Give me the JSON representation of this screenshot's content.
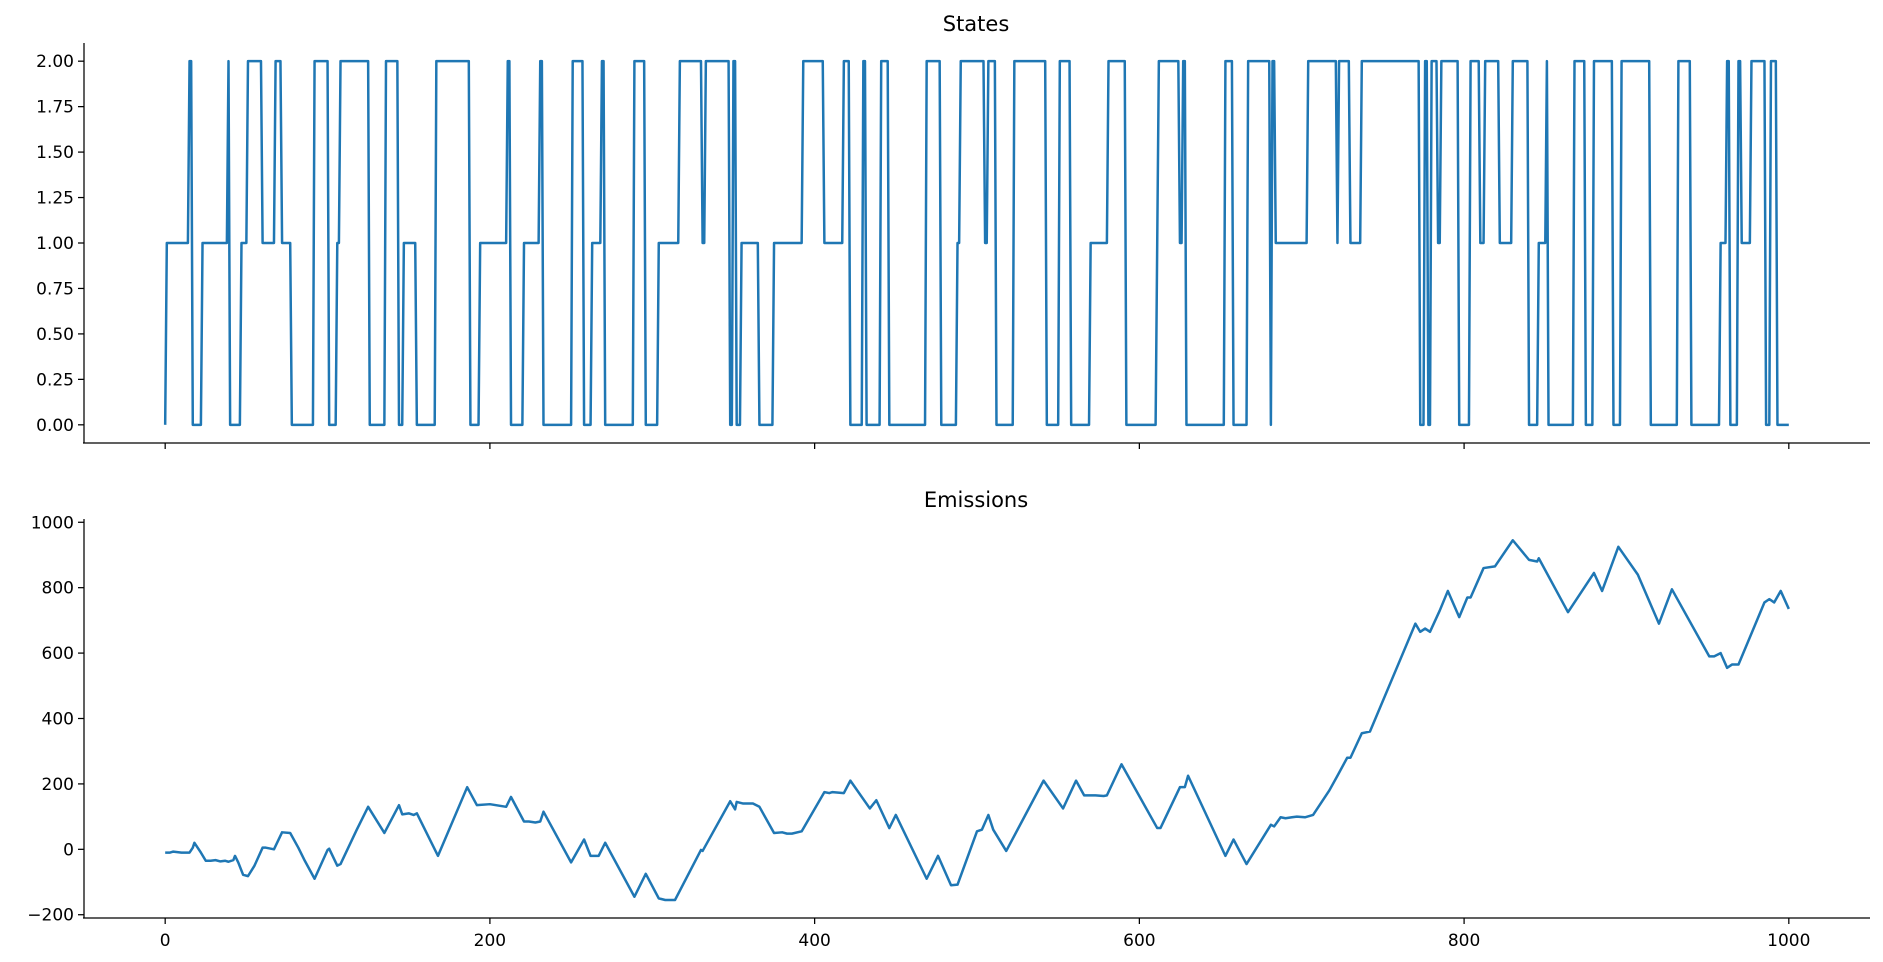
{
  "chart_data": [
    {
      "type": "line",
      "title": "States",
      "xlabel": "",
      "ylabel": "",
      "xlim": [
        -50,
        1050
      ],
      "ylim": [
        -0.1,
        2.1
      ],
      "xticks": [
        0,
        200,
        400,
        600,
        800,
        1000
      ],
      "xtick_labels_visible": false,
      "yticks": [
        0.0,
        0.25,
        0.5,
        0.75,
        1.0,
        1.25,
        1.5,
        1.75,
        2.0
      ],
      "ytick_labels": [
        "0.00",
        "0.25",
        "0.50",
        "0.75",
        "1.00",
        "1.25",
        "1.50",
        "1.75",
        "2.00"
      ],
      "grid": false,
      "color": "#1f77b4",
      "step_changes": [
        [
          0,
          0
        ],
        [
          1,
          1
        ],
        [
          15,
          2
        ],
        [
          17,
          0
        ],
        [
          23,
          1
        ],
        [
          39,
          2
        ],
        [
          40,
          0
        ],
        [
          47,
          1
        ],
        [
          51,
          2
        ],
        [
          60,
          1
        ],
        [
          68,
          2
        ],
        [
          72,
          1
        ],
        [
          78,
          0
        ],
        [
          92,
          2
        ],
        [
          101,
          0
        ],
        [
          106,
          1
        ],
        [
          108,
          2
        ],
        [
          126,
          0
        ],
        [
          136,
          2
        ],
        [
          144,
          0
        ],
        [
          147,
          1
        ],
        [
          155,
          0
        ],
        [
          167,
          2
        ],
        [
          188,
          0
        ],
        [
          194,
          1
        ],
        [
          211,
          2
        ],
        [
          213,
          0
        ],
        [
          221,
          1
        ],
        [
          231,
          2
        ],
        [
          233,
          0
        ],
        [
          251,
          2
        ],
        [
          258,
          0
        ],
        [
          263,
          1
        ],
        [
          269,
          2
        ],
        [
          271,
          0
        ],
        [
          289,
          2
        ],
        [
          296,
          0
        ],
        [
          304,
          1
        ],
        [
          317,
          2
        ],
        [
          331,
          1
        ],
        [
          333,
          2
        ],
        [
          348,
          0
        ],
        [
          350,
          2
        ],
        [
          352,
          0
        ],
        [
          355,
          1
        ],
        [
          366,
          0
        ],
        [
          375,
          1
        ],
        [
          393,
          2
        ],
        [
          406,
          1
        ],
        [
          418,
          2
        ],
        [
          422,
          0
        ],
        [
          430,
          2
        ],
        [
          432,
          0
        ],
        [
          441,
          2
        ],
        [
          446,
          0
        ],
        [
          469,
          2
        ],
        [
          478,
          0
        ],
        [
          488,
          1
        ],
        [
          490,
          2
        ],
        [
          505,
          1
        ],
        [
          507,
          2
        ],
        [
          512,
          0
        ],
        [
          523,
          2
        ],
        [
          543,
          0
        ],
        [
          551,
          2
        ],
        [
          558,
          0
        ],
        [
          570,
          1
        ],
        [
          581,
          2
        ],
        [
          592,
          0
        ],
        [
          611,
          1
        ],
        [
          612,
          2
        ],
        [
          625,
          1
        ],
        [
          627,
          2
        ],
        [
          629,
          0
        ],
        [
          653,
          2
        ],
        [
          658,
          0
        ],
        [
          667,
          2
        ],
        [
          681,
          0
        ],
        [
          682,
          2
        ],
        [
          684,
          1
        ],
        [
          704,
          2
        ],
        [
          722,
          1
        ],
        [
          723,
          2
        ],
        [
          730,
          1
        ],
        [
          737,
          2
        ],
        [
          773,
          0
        ],
        [
          776,
          2
        ],
        [
          778,
          0
        ],
        [
          780,
          2
        ],
        [
          784,
          1
        ],
        [
          786,
          2
        ],
        [
          797,
          0
        ],
        [
          804,
          2
        ],
        [
          810,
          1
        ],
        [
          813,
          2
        ],
        [
          822,
          1
        ],
        [
          830,
          2
        ],
        [
          840,
          0
        ],
        [
          846,
          1
        ],
        [
          851,
          2
        ],
        [
          852,
          0
        ],
        [
          868,
          2
        ],
        [
          875,
          0
        ],
        [
          880,
          2
        ],
        [
          892,
          0
        ],
        [
          897,
          2
        ],
        [
          915,
          0
        ],
        [
          932,
          2
        ],
        [
          940,
          0
        ],
        [
          958,
          1
        ],
        [
          962,
          2
        ],
        [
          964,
          0
        ],
        [
          969,
          2
        ],
        [
          971,
          1
        ],
        [
          977,
          2
        ],
        [
          986,
          0
        ],
        [
          989,
          2
        ],
        [
          993,
          0
        ],
        [
          1000,
          0
        ]
      ]
    },
    {
      "type": "line",
      "title": "Emissions",
      "xlabel": "",
      "ylabel": "",
      "xlim": [
        -50,
        1050
      ],
      "ylim": [
        -210,
        1010
      ],
      "xticks": [
        0,
        200,
        400,
        600,
        800,
        1000
      ],
      "xtick_labels": [
        "0",
        "200",
        "400",
        "600",
        "800",
        "1000"
      ],
      "yticks": [
        -200,
        0,
        200,
        400,
        600,
        800,
        1000
      ],
      "ytick_labels": [
        "−200",
        "0",
        "200",
        "400",
        "600",
        "800",
        "1000"
      ],
      "grid": false,
      "color": "#1f77b4",
      "points": [
        [
          0,
          -10
        ],
        [
          3,
          -10
        ],
        [
          5,
          -7
        ],
        [
          10,
          -10
        ],
        [
          15,
          -10
        ],
        [
          17,
          5
        ],
        [
          18,
          20
        ],
        [
          20,
          5
        ],
        [
          22,
          -10
        ],
        [
          25,
          -35
        ],
        [
          28,
          -35
        ],
        [
          31,
          -33
        ],
        [
          34,
          -37
        ],
        [
          37,
          -35
        ],
        [
          39,
          -38
        ],
        [
          42,
          -33
        ],
        [
          43,
          -20
        ],
        [
          45,
          -40
        ],
        [
          48,
          -78
        ],
        [
          51,
          -82
        ],
        [
          55,
          -50
        ],
        [
          60,
          5
        ],
        [
          62,
          5
        ],
        [
          67,
          0
        ],
        [
          72,
          52
        ],
        [
          77,
          50
        ],
        [
          82,
          5
        ],
        [
          86,
          -35
        ],
        [
          92,
          -90
        ],
        [
          100,
          -2
        ],
        [
          101,
          2
        ],
        [
          106,
          -50
        ],
        [
          108,
          -45
        ],
        [
          118,
          60
        ],
        [
          125,
          130
        ],
        [
          135,
          50
        ],
        [
          144,
          135
        ],
        [
          146,
          107
        ],
        [
          150,
          110
        ],
        [
          153,
          105
        ],
        [
          155,
          110
        ],
        [
          168,
          -20
        ],
        [
          186,
          190
        ],
        [
          192,
          135
        ],
        [
          200,
          138
        ],
        [
          210,
          130
        ],
        [
          213,
          160
        ],
        [
          221,
          85
        ],
        [
          224,
          85
        ],
        [
          228,
          82
        ],
        [
          231,
          85
        ],
        [
          233,
          115
        ],
        [
          250,
          -40
        ],
        [
          258,
          30
        ],
        [
          262,
          -20
        ],
        [
          267,
          -20
        ],
        [
          271,
          20
        ],
        [
          289,
          -145
        ],
        [
          296,
          -75
        ],
        [
          304,
          -150
        ],
        [
          308,
          -155
        ],
        [
          314,
          -155
        ],
        [
          330,
          -2
        ],
        [
          331,
          -5
        ],
        [
          348,
          147
        ],
        [
          351,
          122
        ],
        [
          352,
          145
        ],
        [
          356,
          140
        ],
        [
          362,
          140
        ],
        [
          366,
          130
        ],
        [
          375,
          50
        ],
        [
          380,
          52
        ],
        [
          383,
          48
        ],
        [
          386,
          48
        ],
        [
          392,
          55
        ],
        [
          406,
          175
        ],
        [
          409,
          172
        ],
        [
          411,
          175
        ],
        [
          418,
          172
        ],
        [
          422,
          210
        ],
        [
          434,
          125
        ],
        [
          438,
          150
        ],
        [
          446,
          65
        ],
        [
          450,
          105
        ],
        [
          469,
          -90
        ],
        [
          476,
          -20
        ],
        [
          484,
          -110
        ],
        [
          488,
          -108
        ],
        [
          500,
          55
        ],
        [
          503,
          60
        ],
        [
          507,
          105
        ],
        [
          510,
          60
        ],
        [
          518,
          -5
        ],
        [
          541,
          210
        ],
        [
          553,
          125
        ],
        [
          561,
          210
        ],
        [
          566,
          165
        ],
        [
          573,
          165
        ],
        [
          578,
          163
        ],
        [
          580,
          165
        ],
        [
          589,
          260
        ],
        [
          611,
          65
        ],
        [
          613,
          65
        ],
        [
          625,
          190
        ],
        [
          628,
          190
        ],
        [
          630,
          225
        ],
        [
          653,
          -20
        ],
        [
          658,
          30
        ],
        [
          666,
          -45
        ],
        [
          681,
          75
        ],
        [
          683,
          70
        ],
        [
          687,
          98
        ],
        [
          690,
          95
        ],
        [
          694,
          98
        ],
        [
          697,
          100
        ],
        [
          702,
          98
        ],
        [
          707,
          105
        ],
        [
          717,
          180
        ],
        [
          722,
          225
        ],
        [
          728,
          280
        ],
        [
          730,
          280
        ],
        [
          737,
          355
        ],
        [
          742,
          360
        ],
        [
          770,
          690
        ],
        [
          773,
          665
        ],
        [
          776,
          675
        ],
        [
          779,
          665
        ],
        [
          785,
          730
        ],
        [
          790,
          790
        ],
        [
          797,
          710
        ],
        [
          802,
          770
        ],
        [
          804,
          770
        ],
        [
          812,
          860
        ],
        [
          819,
          865
        ],
        [
          830,
          945
        ],
        [
          840,
          885
        ],
        [
          845,
          880
        ],
        [
          846,
          890
        ],
        [
          864,
          725
        ],
        [
          880,
          845
        ],
        [
          885,
          790
        ],
        [
          895,
          925
        ],
        [
          907,
          840
        ],
        [
          920,
          690
        ],
        [
          928,
          795
        ],
        [
          951,
          590
        ],
        [
          954,
          590
        ],
        [
          958,
          600
        ],
        [
          962,
          555
        ],
        [
          965,
          565
        ],
        [
          969,
          565
        ],
        [
          985,
          755
        ],
        [
          988,
          765
        ],
        [
          991,
          755
        ],
        [
          995,
          790
        ],
        [
          1000,
          735
        ]
      ]
    }
  ]
}
